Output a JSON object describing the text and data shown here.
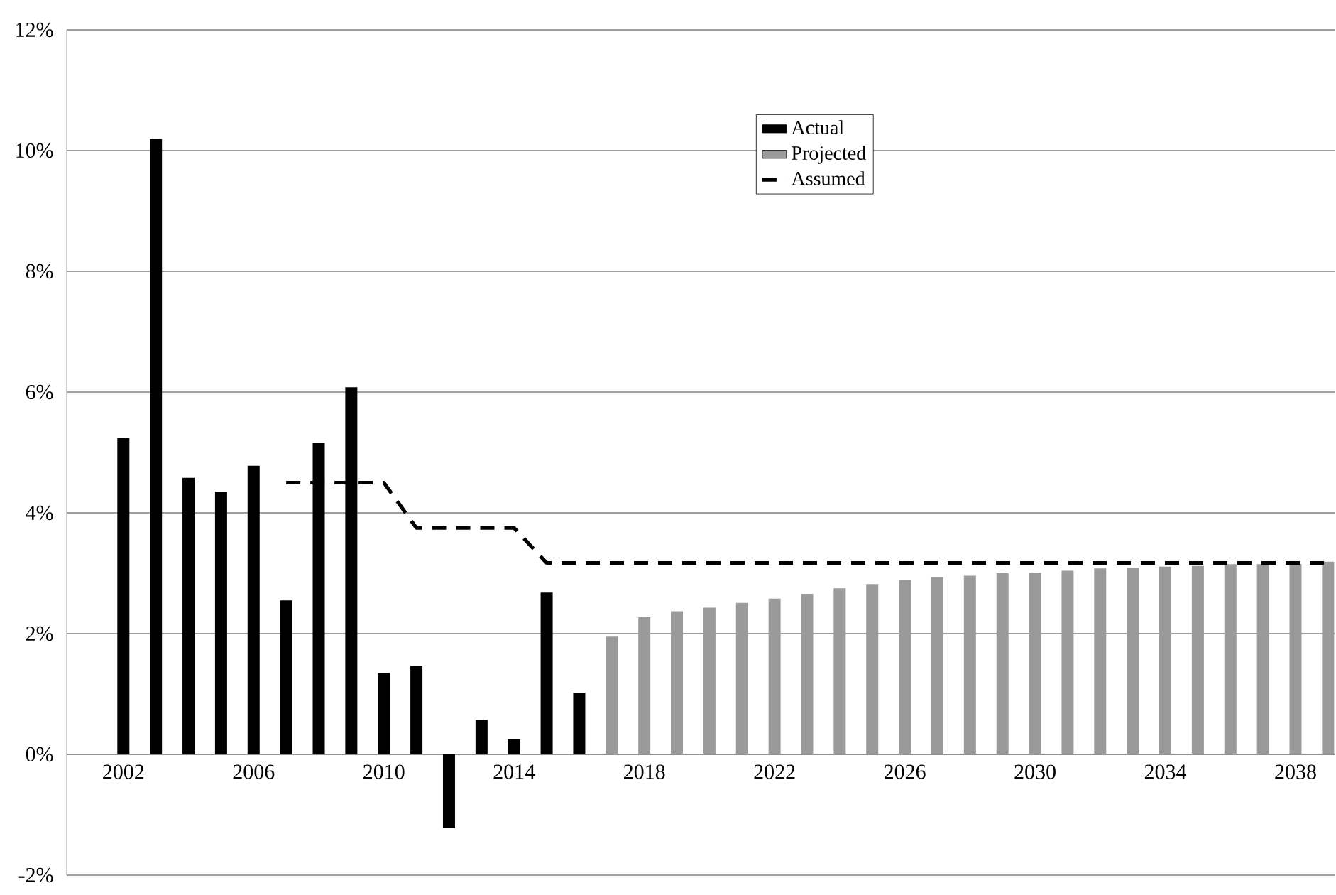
{
  "chart_data": {
    "type": "bar",
    "categories": [
      "2002",
      null,
      null,
      null,
      "2006",
      null,
      null,
      null,
      "2010",
      null,
      null,
      null,
      "2014",
      null,
      null,
      null,
      "2018",
      null,
      null,
      null,
      "2022",
      null,
      null,
      null,
      "2026",
      null,
      null,
      null,
      "2030",
      null,
      null,
      null,
      "2034",
      null,
      null,
      null,
      "2038",
      null
    ],
    "series": [
      {
        "name": "Actual",
        "color": "#000000",
        "values": [
          5.24,
          10.19,
          4.58,
          4.35,
          4.78,
          2.55,
          5.16,
          6.08,
          1.35,
          1.47,
          -1.22,
          0.57,
          0.25,
          2.68,
          1.02,
          null,
          null,
          null,
          null,
          null,
          null,
          null,
          null,
          null,
          null,
          null,
          null,
          null,
          null,
          null,
          null,
          null,
          null,
          null,
          null,
          null,
          null,
          null
        ]
      },
      {
        "name": "Projected",
        "color": "#9a9a9a",
        "values": [
          null,
          null,
          null,
          null,
          null,
          null,
          null,
          null,
          null,
          null,
          null,
          null,
          null,
          null,
          null,
          1.95,
          2.27,
          2.37,
          2.43,
          2.51,
          2.58,
          2.66,
          2.75,
          2.82,
          2.89,
          2.93,
          2.96,
          3.0,
          3.01,
          3.04,
          3.08,
          3.09,
          3.11,
          3.12,
          3.15,
          3.15,
          3.15,
          3.19
        ]
      },
      {
        "name": "Assumed",
        "type": "line",
        "color": "#000000",
        "line_style": "dashed",
        "marker": "none",
        "values": [
          null,
          null,
          null,
          null,
          null,
          4.5,
          4.5,
          4.5,
          4.5,
          3.75,
          3.75,
          3.75,
          3.75,
          3.17,
          3.17,
          3.17,
          3.17,
          3.17,
          3.17,
          3.17,
          3.17,
          3.17,
          3.17,
          3.17,
          3.17,
          3.17,
          3.17,
          3.17,
          3.17,
          3.17,
          3.17,
          3.17,
          3.17,
          3.17,
          3.17,
          3.17,
          3.17,
          3.17
        ]
      }
    ],
    "ylim": [
      -2,
      12
    ],
    "yticks": [
      {
        "value": -2,
        "label": "-2%"
      },
      {
        "value": 0,
        "label": "0%"
      },
      {
        "value": 2,
        "label": "2%"
      },
      {
        "value": 4,
        "label": "4%"
      },
      {
        "value": 6,
        "label": "6%"
      },
      {
        "value": 8,
        "label": "8%"
      },
      {
        "value": 10,
        "label": "10%"
      },
      {
        "value": 12,
        "label": "12%"
      }
    ],
    "grid": "y",
    "legend": "top"
  }
}
